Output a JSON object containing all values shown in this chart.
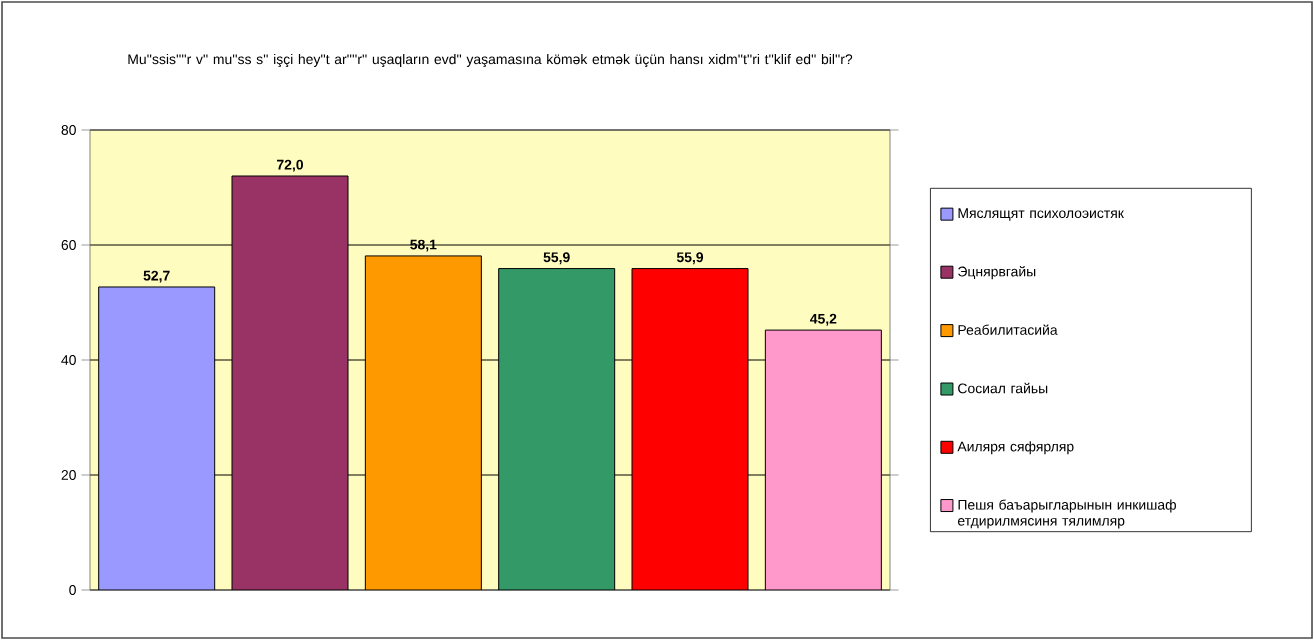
{
  "chart_data": {
    "type": "bar",
    "title": "Mu''ssis''''r v'' mu''ss s'' işçi hey''t ar''''r'' uşaqların evd'' yaşamasına kömək etmək üçün hansı xidm''t''ri t''klif ed'' bil''r?",
    "categories": [
      null,
      null,
      null,
      null,
      null,
      null
    ],
    "series": [
      {
        "name": "Мяслящят психолоэистяк",
        "color": "#9999ff",
        "values": [
          52.7,
          null,
          null,
          null,
          null,
          null
        ],
        "value_labels": [
          "52,7",
          null,
          null,
          null,
          null,
          null
        ]
      },
      {
        "name": "Эцнярвгайы",
        "color": "#993366",
        "values": [
          null,
          72.0,
          null,
          null,
          null,
          null
        ],
        "value_labels": [
          null,
          "72,0",
          null,
          null,
          null,
          null
        ]
      },
      {
        "name": "Реабилитасийа",
        "color": "#ff9900",
        "values": [
          null,
          null,
          58.1,
          null,
          null,
          null
        ],
        "value_labels": [
          null,
          null,
          "58,1",
          null,
          null,
          null
        ]
      },
      {
        "name": "Сосиал гайьы",
        "color": "#339966",
        "values": [
          null,
          null,
          null,
          55.9,
          null,
          null
        ],
        "value_labels": [
          null,
          null,
          null,
          "55,9",
          null,
          null
        ]
      },
      {
        "name": "Аиляря сяфярляр",
        "color": "#ff0000",
        "values": [
          null,
          null,
          null,
          null,
          55.9,
          null
        ],
        "value_labels": [
          null,
          null,
          null,
          null,
          "55,9",
          null
        ]
      },
      {
        "name": "Пешя баъарыгларынын инкишаф етдирилмясиня тялимляр",
        "color": "#ff99cc",
        "values": [
          null,
          null,
          null,
          null,
          null,
          45.2
        ],
        "value_labels": [
          null,
          null,
          null,
          null,
          null,
          "45,2"
        ]
      }
    ],
    "ylim": [
      0,
      80
    ],
    "yticks": [
      0,
      20,
      40,
      60,
      80
    ],
    "grid": "y",
    "legend": "right"
  }
}
